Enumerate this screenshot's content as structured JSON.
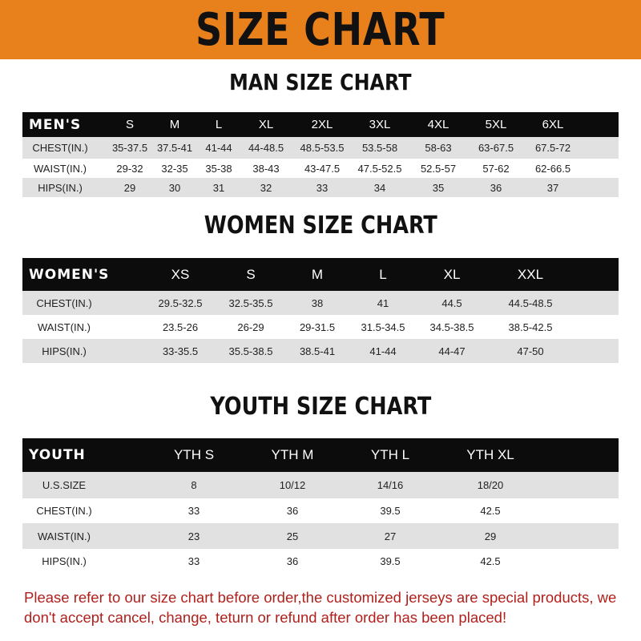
{
  "banner_title": "SIZE CHART",
  "colors": {
    "banner": "#e8801c",
    "header_row": "#0c0c0c",
    "stripe": "#e1e1e1",
    "note": "#b0201c"
  },
  "tables": [
    {
      "title": "MAN SIZE CHART",
      "header_label": "MEN'S",
      "sizes": [
        "S",
        "M",
        "L",
        "XL",
        "2XL",
        "3XL",
        "4XL",
        "5XL",
        "6XL"
      ],
      "rows": [
        {
          "label": "CHEST(IN.)",
          "values": [
            "35-37.5",
            "37.5-41",
            "41-44",
            "44-48.5",
            "48.5-53.5",
            "53.5-58",
            "58-63",
            "63-67.5",
            "67.5-72"
          ]
        },
        {
          "label": "WAIST(IN.)",
          "values": [
            "29-32",
            "32-35",
            "35-38",
            "38-43",
            "43-47.5",
            "47.5-52.5",
            "52.5-57",
            "57-62",
            "62-66.5"
          ]
        },
        {
          "label": "HIPS(IN.)",
          "values": [
            "29",
            "30",
            "31",
            "32",
            "33",
            "34",
            "35",
            "36",
            "37"
          ]
        }
      ]
    },
    {
      "title": "WOMEN SIZE CHART",
      "header_label": "WOMEN'S",
      "sizes": [
        "XS",
        "S",
        "M",
        "L",
        "XL",
        "XXL"
      ],
      "rows": [
        {
          "label": "CHEST(IN.)",
          "values": [
            "29.5-32.5",
            "32.5-35.5",
            "38",
            "41",
            "44.5",
            "44.5-48.5"
          ]
        },
        {
          "label": "WAIST(IN.)",
          "values": [
            "23.5-26",
            "26-29",
            "29-31.5",
            "31.5-34.5",
            "34.5-38.5",
            "38.5-42.5"
          ]
        },
        {
          "label": "HIPS(IN.)",
          "values": [
            "33-35.5",
            "35.5-38.5",
            "38.5-41",
            "41-44",
            "44-47",
            "47-50"
          ]
        }
      ]
    },
    {
      "title": "YOUTH SIZE CHART",
      "header_label": "YOUTH",
      "sizes": [
        "YTH S",
        "YTH M",
        "YTH L",
        "YTH XL"
      ],
      "rows": [
        {
          "label": "U.S.SIZE",
          "values": [
            "8",
            "10/12",
            "14/16",
            "18/20"
          ]
        },
        {
          "label": "CHEST(IN.)",
          "values": [
            "33",
            "36",
            "39.5",
            "42.5"
          ]
        },
        {
          "label": "WAIST(IN.)",
          "values": [
            "23",
            "25",
            "27",
            "29"
          ]
        },
        {
          "label": "HIPS(IN.)",
          "values": [
            "33",
            "36",
            "39.5",
            "42.5"
          ]
        }
      ]
    }
  ],
  "note": "Please refer to our size chart before order,the customized jerseys are special products, we don't accept cancel, change, teturn or refund after order has been placed!"
}
